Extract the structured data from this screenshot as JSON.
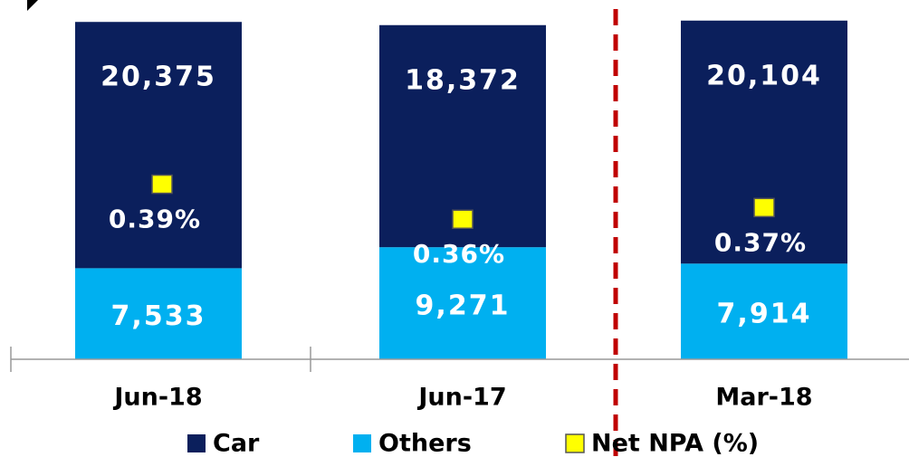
{
  "chart_data": {
    "type": "bar",
    "stacked": true,
    "categories": [
      "Jun-18",
      "Jun-17",
      "Mar-18"
    ],
    "series": [
      {
        "name": "Car",
        "color": "#0b1f5c",
        "values": [
          20375,
          18372,
          20104
        ],
        "value_labels": [
          "20,375",
          "18,372",
          "20,104"
        ]
      },
      {
        "name": "Others",
        "color": "#00b0f0",
        "values": [
          7533,
          9271,
          7914
        ],
        "value_labels": [
          "7,533",
          "9,271",
          "7,914"
        ]
      },
      {
        "name": "Net NPA (%)",
        "color": "#ffff00",
        "axis": "y2",
        "type": "scatter",
        "values": [
          0.39,
          0.36,
          0.37
        ],
        "value_labels": [
          "0.39%",
          "0.36%",
          "0.37%"
        ]
      }
    ],
    "ylim": [
      0,
      28000
    ],
    "y2lim": [
      0.24,
      0.53
    ],
    "legend": "bottom"
  }
}
